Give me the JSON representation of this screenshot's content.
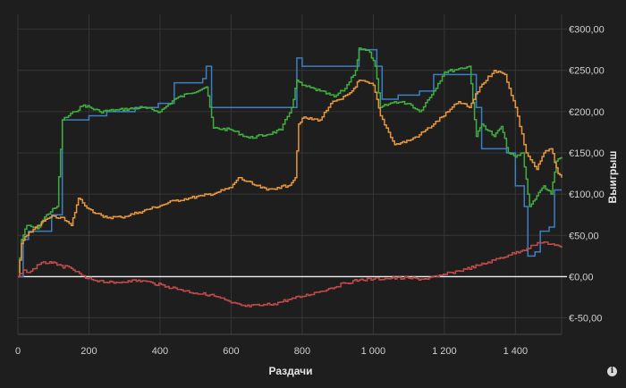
{
  "chart_data": {
    "type": "line",
    "xlabel": "Раздачи",
    "ylabel": "Выигрыш",
    "xlim": [
      0,
      1530
    ],
    "ylim": [
      -70,
      305
    ],
    "x_ticks": [
      {
        "value": 0,
        "label": "0"
      },
      {
        "value": 200,
        "label": "200"
      },
      {
        "value": 400,
        "label": "400"
      },
      {
        "value": 600,
        "label": "600"
      },
      {
        "value": 800,
        "label": "800"
      },
      {
        "value": 1000,
        "label": "1 000"
      },
      {
        "value": 1200,
        "label": "1 200"
      },
      {
        "value": 1400,
        "label": "1 400"
      }
    ],
    "y_ticks": [
      {
        "value": 300,
        "label": "€300,00"
      },
      {
        "value": 250,
        "label": "€250,00"
      },
      {
        "value": 200,
        "label": "€200,00"
      },
      {
        "value": 150,
        "label": "€150,00"
      },
      {
        "value": 100,
        "label": "€100,00"
      },
      {
        "value": 50,
        "label": "€50,00"
      },
      {
        "value": 0,
        "label": "€0,00"
      },
      {
        "value": -50,
        "label": "€-50,00"
      }
    ],
    "grid": true,
    "y_axis_position": "right",
    "series": [
      {
        "color": "#3d7fc4",
        "style": "step",
        "points": [
          [
            0,
            0
          ],
          [
            15,
            45
          ],
          [
            30,
            55
          ],
          [
            60,
            55
          ],
          [
            95,
            75
          ],
          [
            125,
            190
          ],
          [
            200,
            195
          ],
          [
            250,
            200
          ],
          [
            330,
            205
          ],
          [
            395,
            210
          ],
          [
            440,
            235
          ],
          [
            520,
            240
          ],
          [
            530,
            255
          ],
          [
            545,
            205
          ],
          [
            700,
            205
          ],
          [
            735,
            205
          ],
          [
            770,
            205
          ],
          [
            785,
            265
          ],
          [
            800,
            255
          ],
          [
            900,
            255
          ],
          [
            945,
            255
          ],
          [
            960,
            275
          ],
          [
            1010,
            255
          ],
          [
            1025,
            215
          ],
          [
            1070,
            220
          ],
          [
            1130,
            225
          ],
          [
            1170,
            245
          ],
          [
            1240,
            245
          ],
          [
            1265,
            245
          ],
          [
            1290,
            205
          ],
          [
            1305,
            155
          ],
          [
            1375,
            150
          ],
          [
            1400,
            110
          ],
          [
            1425,
            85
          ],
          [
            1435,
            25
          ],
          [
            1455,
            30
          ],
          [
            1470,
            55
          ],
          [
            1495,
            60
          ],
          [
            1510,
            105
          ],
          [
            1530,
            105
          ]
        ]
      },
      {
        "color": "#3fae3f",
        "style": "jagged",
        "points": [
          [
            0,
            0
          ],
          [
            10,
            45
          ],
          [
            25,
            62
          ],
          [
            55,
            58
          ],
          [
            80,
            75
          ],
          [
            110,
            85
          ],
          [
            125,
            190
          ],
          [
            160,
            200
          ],
          [
            185,
            208
          ],
          [
            230,
            200
          ],
          [
            280,
            202
          ],
          [
            350,
            205
          ],
          [
            400,
            200
          ],
          [
            440,
            215
          ],
          [
            480,
            222
          ],
          [
            530,
            230
          ],
          [
            550,
            180
          ],
          [
            600,
            178
          ],
          [
            650,
            168
          ],
          [
            700,
            172
          ],
          [
            740,
            178
          ],
          [
            770,
            205
          ],
          [
            785,
            238
          ],
          [
            800,
            232
          ],
          [
            850,
            225
          ],
          [
            890,
            218
          ],
          [
            920,
            228
          ],
          [
            950,
            250
          ],
          [
            960,
            277
          ],
          [
            990,
            272
          ],
          [
            1005,
            255
          ],
          [
            1020,
            205
          ],
          [
            1060,
            212
          ],
          [
            1100,
            210
          ],
          [
            1130,
            200
          ],
          [
            1170,
            225
          ],
          [
            1200,
            248
          ],
          [
            1240,
            252
          ],
          [
            1270,
            255
          ],
          [
            1290,
            170
          ],
          [
            1305,
            185
          ],
          [
            1340,
            170
          ],
          [
            1360,
            182
          ],
          [
            1380,
            150
          ],
          [
            1400,
            145
          ],
          [
            1420,
            150
          ],
          [
            1440,
            85
          ],
          [
            1460,
            98
          ],
          [
            1480,
            110
          ],
          [
            1500,
            100
          ],
          [
            1515,
            140
          ],
          [
            1530,
            145
          ]
        ]
      },
      {
        "color": "#e7963c",
        "style": "jagged",
        "points": [
          [
            0,
            0
          ],
          [
            10,
            40
          ],
          [
            25,
            50
          ],
          [
            55,
            62
          ],
          [
            90,
            72
          ],
          [
            120,
            72
          ],
          [
            150,
            62
          ],
          [
            170,
            95
          ],
          [
            200,
            82
          ],
          [
            240,
            72
          ],
          [
            290,
            72
          ],
          [
            340,
            78
          ],
          [
            400,
            86
          ],
          [
            440,
            92
          ],
          [
            480,
            95
          ],
          [
            520,
            98
          ],
          [
            560,
            102
          ],
          [
            600,
            108
          ],
          [
            620,
            120
          ],
          [
            660,
            112
          ],
          [
            700,
            105
          ],
          [
            730,
            108
          ],
          [
            760,
            110
          ],
          [
            780,
            120
          ],
          [
            790,
            185
          ],
          [
            800,
            192
          ],
          [
            850,
            190
          ],
          [
            880,
            210
          ],
          [
            910,
            215
          ],
          [
            940,
            225
          ],
          [
            960,
            238
          ],
          [
            1000,
            232
          ],
          [
            1020,
            195
          ],
          [
            1060,
            160
          ],
          [
            1100,
            165
          ],
          [
            1130,
            172
          ],
          [
            1170,
            185
          ],
          [
            1210,
            200
          ],
          [
            1240,
            212
          ],
          [
            1270,
            205
          ],
          [
            1300,
            230
          ],
          [
            1340,
            250
          ],
          [
            1370,
            245
          ],
          [
            1400,
            205
          ],
          [
            1430,
            150
          ],
          [
            1460,
            130
          ],
          [
            1480,
            150
          ],
          [
            1500,
            155
          ],
          [
            1520,
            125
          ],
          [
            1530,
            120
          ]
        ]
      },
      {
        "color": "#c14a4a",
        "style": "jagged",
        "points": [
          [
            0,
            0
          ],
          [
            15,
            8
          ],
          [
            30,
            5
          ],
          [
            60,
            15
          ],
          [
            90,
            18
          ],
          [
            110,
            14
          ],
          [
            150,
            10
          ],
          [
            190,
            -2
          ],
          [
            230,
            -5
          ],
          [
            270,
            -8
          ],
          [
            310,
            -5
          ],
          [
            350,
            -5
          ],
          [
            380,
            -8
          ],
          [
            420,
            -12
          ],
          [
            460,
            -16
          ],
          [
            500,
            -20
          ],
          [
            540,
            -22
          ],
          [
            570,
            -26
          ],
          [
            600,
            -32
          ],
          [
            640,
            -36
          ],
          [
            680,
            -35
          ],
          [
            720,
            -33
          ],
          [
            760,
            -28
          ],
          [
            800,
            -24
          ],
          [
            840,
            -19
          ],
          [
            880,
            -14
          ],
          [
            920,
            -8
          ],
          [
            960,
            -4
          ],
          [
            1000,
            -3
          ],
          [
            1050,
            -2
          ],
          [
            1100,
            -2
          ],
          [
            1140,
            -3
          ],
          [
            1180,
            0
          ],
          [
            1220,
            5
          ],
          [
            1260,
            9
          ],
          [
            1300,
            14
          ],
          [
            1340,
            20
          ],
          [
            1380,
            26
          ],
          [
            1420,
            32
          ],
          [
            1450,
            38
          ],
          [
            1480,
            42
          ],
          [
            1510,
            38
          ],
          [
            1530,
            35
          ]
        ]
      }
    ]
  },
  "info_button": {
    "label": "i"
  }
}
